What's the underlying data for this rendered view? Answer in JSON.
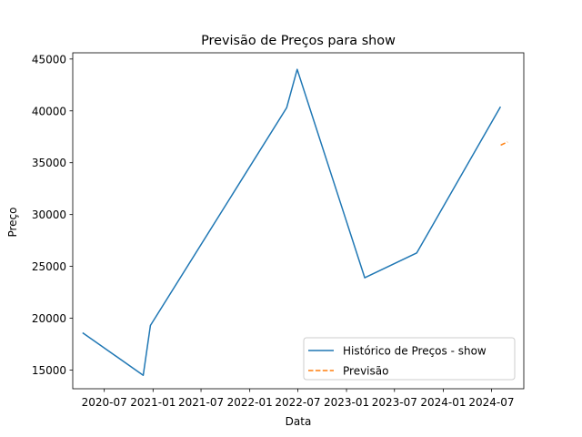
{
  "chart_data": {
    "type": "line",
    "title": "Previsão de Preços para show",
    "xlabel": "Data",
    "ylabel": "Preço",
    "x_axis_type": "date",
    "xlim": [
      "2020-03-04",
      "2024-10-31"
    ],
    "ylim": [
      13200,
      45600
    ],
    "x_ticks": [
      {
        "date": "2020-07-01",
        "label": "2020-07"
      },
      {
        "date": "2021-01-01",
        "label": "2021-01"
      },
      {
        "date": "2021-07-01",
        "label": "2021-07"
      },
      {
        "date": "2022-01-01",
        "label": "2022-01"
      },
      {
        "date": "2022-07-01",
        "label": "2022-07"
      },
      {
        "date": "2023-01-01",
        "label": "2023-01"
      },
      {
        "date": "2023-07-01",
        "label": "2023-07"
      },
      {
        "date": "2024-01-01",
        "label": "2024-01"
      },
      {
        "date": "2024-07-01",
        "label": "2024-07"
      }
    ],
    "y_ticks": [
      15000,
      20000,
      25000,
      30000,
      35000,
      40000,
      45000
    ],
    "grid": false,
    "legend_position": "lower right",
    "series": [
      {
        "name": "Histórico de Preços - show",
        "color": "#1f77b4",
        "line_style": "solid",
        "points": [
          {
            "x": "2020-04-10",
            "y": 18600
          },
          {
            "x": "2020-11-25",
            "y": 14500
          },
          {
            "x": "2020-12-22",
            "y": 19300
          },
          {
            "x": "2022-05-20",
            "y": 40300
          },
          {
            "x": "2022-06-29",
            "y": 44000
          },
          {
            "x": "2023-03-11",
            "y": 23900
          },
          {
            "x": "2023-09-23",
            "y": 26300
          },
          {
            "x": "2024-08-04",
            "y": 40400
          }
        ]
      },
      {
        "name": "Previsão",
        "color": "#ff7f0e",
        "line_style": "dashed",
        "points": [
          {
            "x": "2024-08-05",
            "y": 36700
          },
          {
            "x": "2024-08-31",
            "y": 37000
          }
        ]
      }
    ]
  }
}
